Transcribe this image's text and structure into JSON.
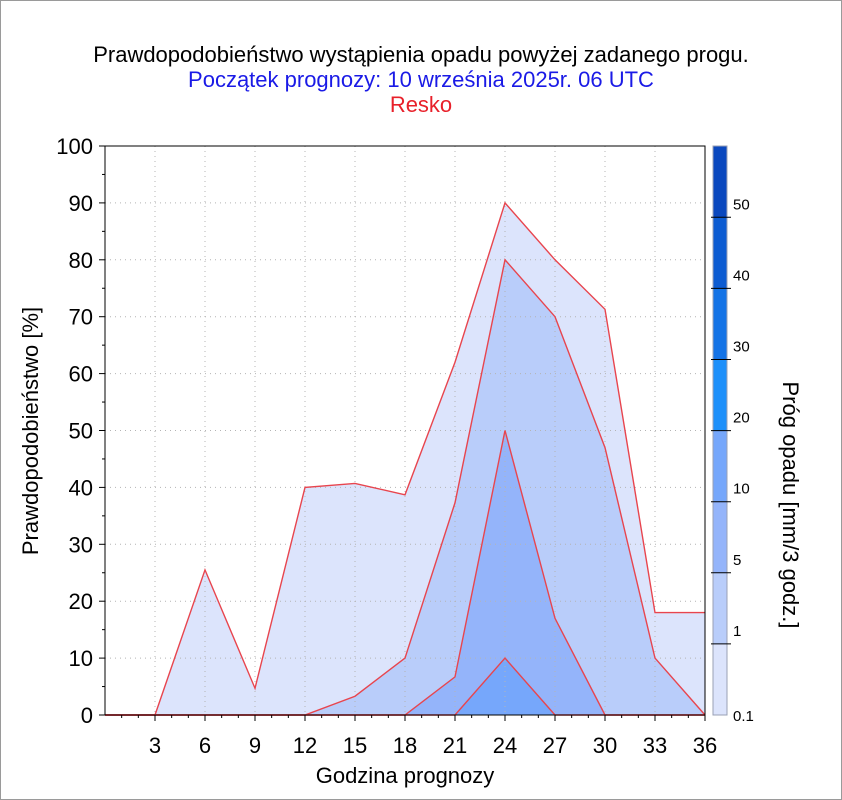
{
  "chart_data": {
    "type": "area",
    "title": "Prawdopodobieństwo wystąpienia opadu powyżej zadanego progu.",
    "subtitle": "Początek prognozy: 10 września 2025r. 06 UTC",
    "station": "Resko",
    "xlabel": "Godzina prognozy",
    "ylabel": "Prawdopodobieństwo [%]",
    "colorbar_label": "Próg opadu [mm/3 godz.]",
    "xlim": [
      0,
      36
    ],
    "ylim": [
      0,
      100
    ],
    "x_ticks": [
      3,
      6,
      9,
      12,
      15,
      18,
      21,
      24,
      27,
      30,
      33,
      36
    ],
    "y_ticks": [
      0,
      10,
      20,
      30,
      40,
      50,
      60,
      70,
      80,
      90,
      100
    ],
    "grid": true,
    "x": [
      0,
      3,
      6,
      9,
      12,
      15,
      18,
      21,
      24,
      27,
      30,
      33,
      36
    ],
    "series": [
      {
        "threshold": "0.1",
        "color": "#dce4fc",
        "values": [
          0,
          0,
          25.5,
          4.7,
          40,
          40.7,
          38.7,
          62,
          90,
          80,
          71.3,
          18,
          18
        ]
      },
      {
        "threshold": "1",
        "color": "#b9cdfa",
        "values": [
          0,
          0,
          0,
          0,
          0,
          3.3,
          10,
          37.3,
          80,
          70,
          47,
          10,
          0
        ]
      },
      {
        "threshold": "5",
        "color": "#94b4fa",
        "values": [
          0,
          0,
          0,
          0,
          0,
          0,
          0,
          6.7,
          50,
          17,
          0,
          0,
          0
        ]
      },
      {
        "threshold": "10",
        "color": "#76a7fb",
        "values": [
          0,
          0,
          0,
          0,
          0,
          0,
          0,
          0,
          10,
          0,
          0,
          0,
          0
        ]
      }
    ],
    "colorbar": {
      "labels": [
        "0.1",
        "1",
        "5",
        "10",
        "20",
        "30",
        "40",
        "50"
      ],
      "colors": [
        "#dce4fc",
        "#b9cdfa",
        "#94b4fa",
        "#76a7fb",
        "#1e90fa",
        "#1473e6",
        "#0d5cd2",
        "#0a48be",
        "#0a3ca5"
      ]
    },
    "colors": {
      "line": "#e8454e",
      "title": "#000000",
      "subtitle": "#1a1ae6",
      "station": "#e8202a",
      "grid": "#b4b4b4"
    }
  }
}
